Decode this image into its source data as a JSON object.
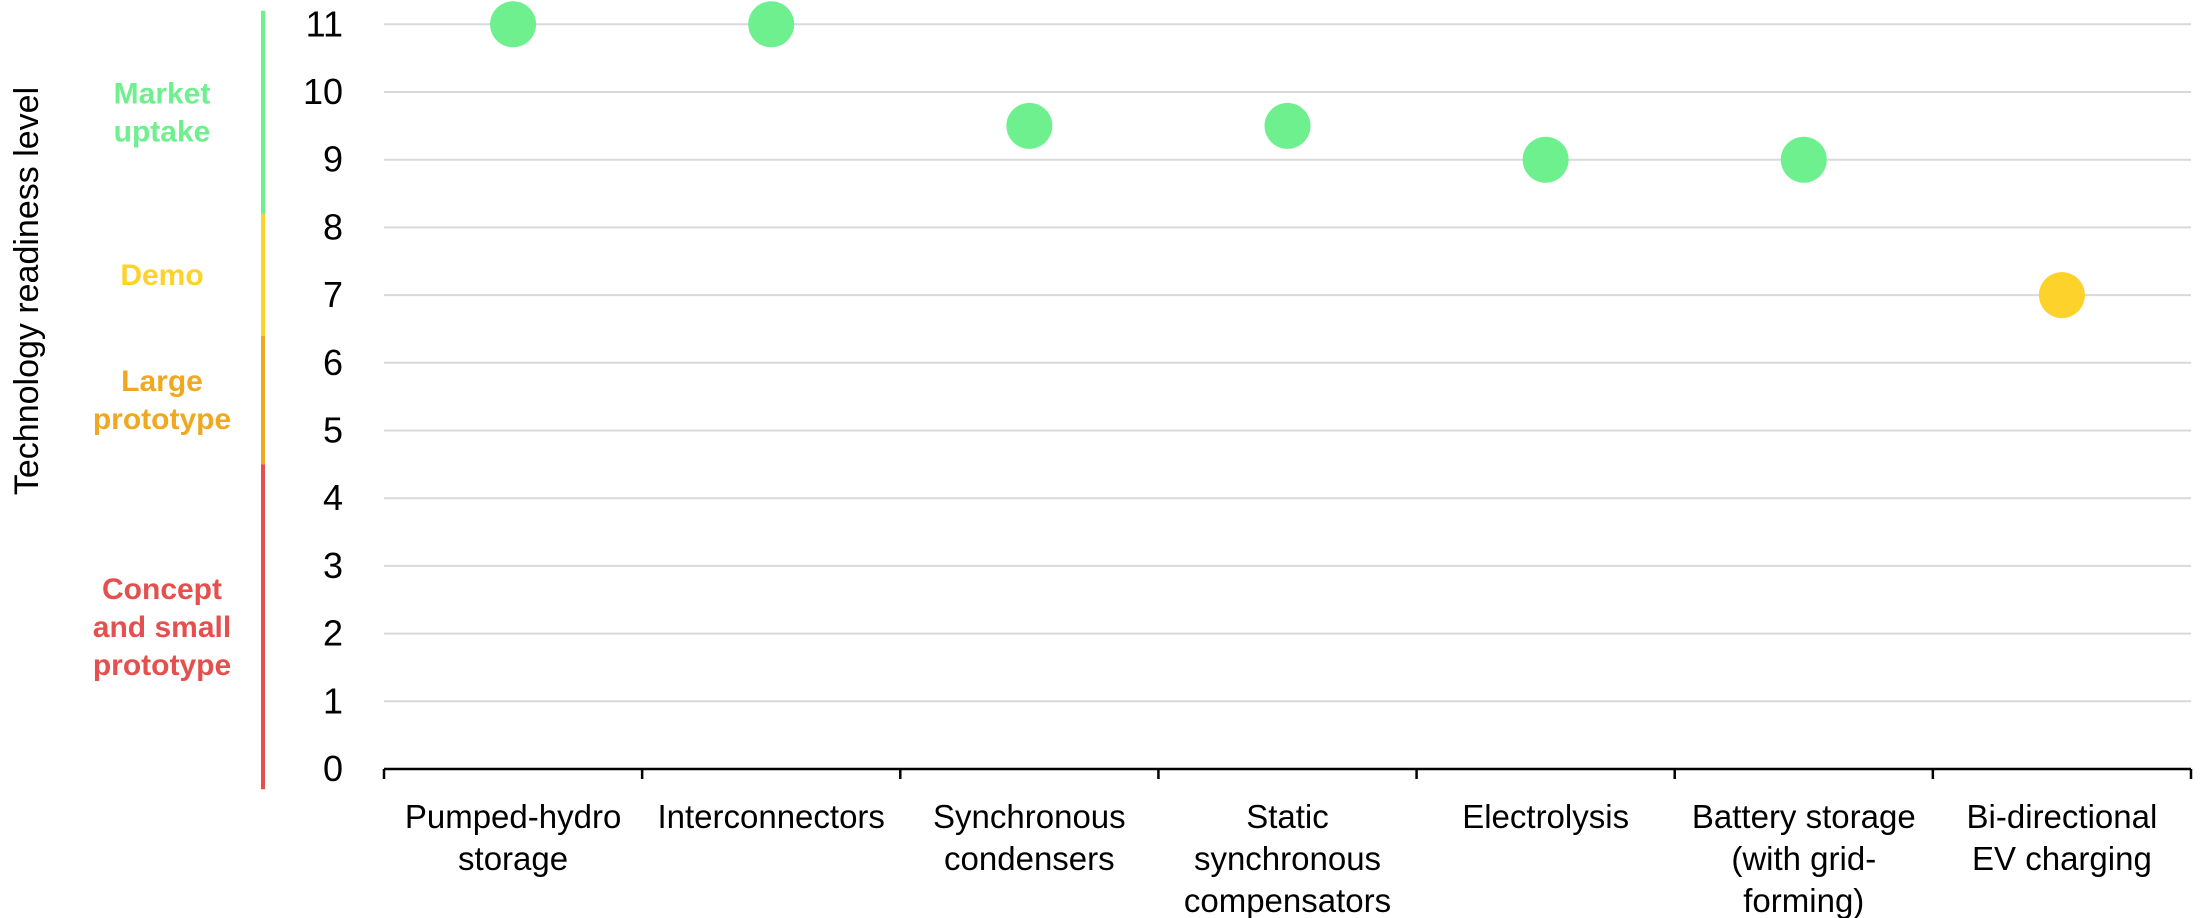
{
  "chart_data": {
    "type": "scatter",
    "title": "",
    "xlabel": "",
    "ylabel": "Technology readiness level",
    "ylim": [
      0,
      11
    ],
    "yticks": [
      0,
      1,
      2,
      3,
      4,
      5,
      6,
      7,
      8,
      9,
      10,
      11
    ],
    "grid": true,
    "categories": [
      [
        "Pumped-hydro",
        "storage"
      ],
      [
        "Interconnectors"
      ],
      [
        "Synchronous",
        "condensers"
      ],
      [
        "Static",
        "synchronous",
        "compensators"
      ],
      [
        "Electrolysis"
      ],
      [
        "Battery storage",
        "(with grid-",
        "forming)"
      ],
      [
        "Bi-directional",
        "EV charging"
      ]
    ],
    "values": [
      11,
      11,
      9.5,
      9.5,
      9,
      9,
      7
    ],
    "point_colors": [
      "#6ef08f",
      "#6ef08f",
      "#6ef08f",
      "#6ef08f",
      "#6ef08f",
      "#6ef08f",
      "#fdd22b"
    ],
    "bands": [
      {
        "label": [
          "Market",
          "uptake"
        ],
        "from": 8.2,
        "to": 11.2,
        "color": "#6ef08f"
      },
      {
        "label": [
          "Demo"
        ],
        "from": 6.4,
        "to": 8.2,
        "color": "#fdd22b"
      },
      {
        "label": [
          "Large",
          "prototype"
        ],
        "from": 4.5,
        "to": 6.4,
        "color": "#f0a820"
      },
      {
        "label": [
          "Concept",
          "and small",
          "prototype"
        ],
        "from": -0.3,
        "to": 4.5,
        "color": "#e5504e"
      }
    ]
  }
}
